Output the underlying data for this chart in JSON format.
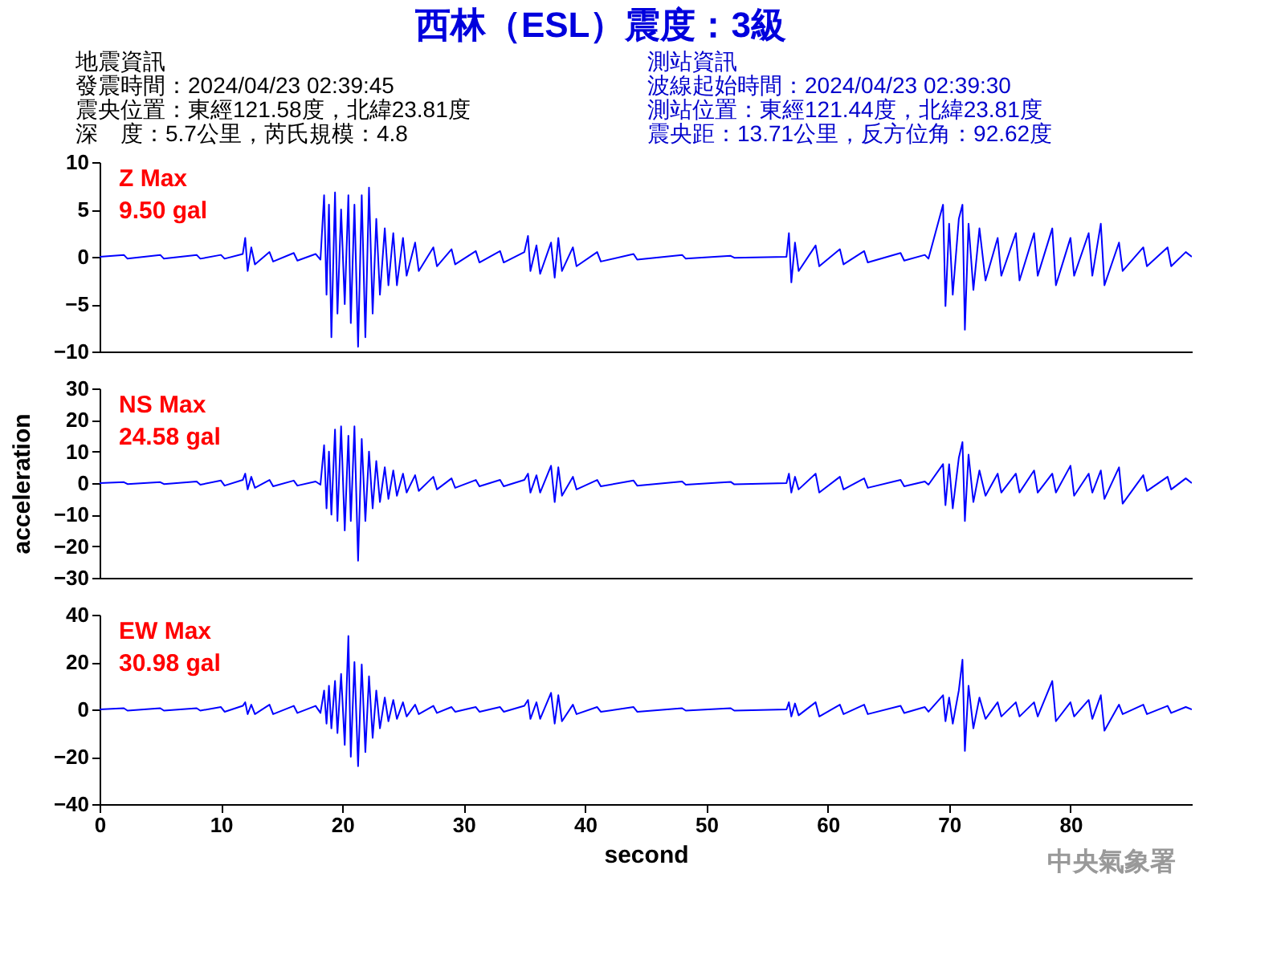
{
  "chart_data": [
    {
      "type": "line",
      "title": "西林（ESL）震度：3級",
      "tick_labels": "y",
      "xlim": [
        0,
        90
      ],
      "ylim": [
        -10,
        10
      ],
      "yticks": [
        -10,
        -5,
        0,
        5,
        10
      ],
      "annotations": [
        "Z Max",
        "9.50 gal",
        "地震資訊",
        "發震時間：2024/04/23 02:39:45",
        "震央位置：東經121.58度，北緯23.81度",
        "深　度：5.7公里，芮氏規模：4.8",
        "測站資訊",
        "波線起始時間：2024/04/23 02:39:30",
        "測站位置：東經121.44度，北緯23.81度",
        "震央距：13.71公里，反方位角：92.62度"
      ],
      "x": [
        0,
        2,
        2.3,
        5,
        5.3,
        8,
        8.3,
        10,
        10.3,
        11.8,
        12,
        12.2,
        12.5,
        12.8,
        14,
        14.3,
        16,
        16.3,
        17.8,
        18.2,
        18.5,
        18.7,
        18.9,
        19.1,
        19.4,
        19.6,
        19.9,
        20.2,
        20.5,
        20.7,
        21,
        21.3,
        21.6,
        21.9,
        22.2,
        22.5,
        22.8,
        23.1,
        23.5,
        23.8,
        24.2,
        24.5,
        25,
        25.3,
        26,
        26.3,
        27.5,
        27.8,
        29,
        29.3,
        31,
        31.3,
        33,
        33.3,
        35,
        35.3,
        35.5,
        36,
        36.3,
        37.2,
        37.5,
        37.8,
        38.1,
        39,
        39.3,
        41,
        41.3,
        44,
        44.3,
        48,
        48.3,
        52,
        52.3,
        56.6,
        56.8,
        57,
        57.3,
        57.6,
        59,
        59.3,
        61,
        61.3,
        63,
        63.3,
        66,
        66.3,
        68,
        68.3,
        69.5,
        69.7,
        70,
        70.3,
        70.8,
        71.1,
        71.3,
        71.6,
        72,
        72.5,
        73,
        74,
        74.3,
        75.5,
        75.8,
        77,
        77.3,
        78.5,
        78.8,
        80,
        80.3,
        81.5,
        81.8,
        82.5,
        82.8,
        84,
        84.3,
        86,
        86.3,
        88,
        88.3,
        89.5,
        90
      ],
      "series": [
        {
          "color": "#0000ff",
          "values": [
            0,
            0.2,
            -0.2,
            0.2,
            -0.2,
            0.2,
            -0.2,
            0.2,
            -0.2,
            0.3,
            2.0,
            -1.5,
            1,
            -0.8,
            0.5,
            -0.5,
            0.4,
            -0.4,
            0.3,
            -0.3,
            6.5,
            -4,
            5.5,
            -8.5,
            6.8,
            -6,
            5,
            -5,
            6.5,
            -7,
            5.5,
            -9.5,
            6.5,
            -8.5,
            7.3,
            -6,
            4,
            -4,
            3,
            -3,
            2.5,
            -3,
            2,
            -2,
            1.5,
            -1.5,
            1,
            -1,
            0.8,
            -0.8,
            0.6,
            -0.6,
            0.6,
            -0.6,
            0.5,
            2.2,
            -1.5,
            1.2,
            -1.8,
            1.5,
            -2.2,
            2,
            -1.5,
            1,
            -1,
            0.5,
            -0.5,
            0.3,
            -0.3,
            0.2,
            -0.2,
            0.1,
            -0.1,
            0,
            2.5,
            -2.7,
            1.5,
            -1.5,
            1.2,
            -1,
            0.8,
            -0.8,
            0.6,
            -0.6,
            0.4,
            -0.4,
            0.2,
            -0.2,
            5.5,
            -5.2,
            3.5,
            -4,
            4,
            5.5,
            -7.7,
            3.5,
            -3.5,
            3,
            -2.5,
            2,
            -2,
            2.5,
            -2.5,
            2.5,
            -2,
            3,
            -3,
            2,
            -2,
            2.5,
            -2,
            3.5,
            -3,
            1.5,
            -1.5,
            1,
            -1,
            1,
            -1,
            0.5,
            0
          ]
        }
      ]
    },
    {
      "type": "line",
      "tick_labels": "y",
      "xlim": [
        0,
        90
      ],
      "ylim": [
        -30,
        30
      ],
      "yticks": [
        -30,
        -20,
        -10,
        0,
        10,
        20,
        30
      ],
      "ylabel": "acceleration",
      "annotations": [
        "NS Max",
        "24.58 gal"
      ],
      "x": [
        0,
        2,
        2.3,
        5,
        5.3,
        8,
        8.3,
        10,
        10.3,
        11.8,
        12,
        12.2,
        12.5,
        12.8,
        14,
        14.3,
        16,
        16.3,
        17.8,
        18.2,
        18.5,
        18.7,
        18.9,
        19.1,
        19.4,
        19.6,
        19.9,
        20.2,
        20.5,
        20.7,
        21,
        21.3,
        21.6,
        21.9,
        22.2,
        22.5,
        22.8,
        23.1,
        23.5,
        23.8,
        24.2,
        24.5,
        25,
        25.3,
        26,
        26.3,
        27.5,
        27.8,
        29,
        29.3,
        31,
        31.3,
        33,
        33.3,
        35,
        35.3,
        35.5,
        36,
        36.3,
        37.2,
        37.5,
        37.8,
        38.1,
        39,
        39.3,
        41,
        41.3,
        44,
        44.3,
        48,
        48.3,
        52,
        52.3,
        56.6,
        56.8,
        57,
        57.3,
        57.6,
        59,
        59.3,
        61,
        61.3,
        63,
        63.3,
        66,
        66.3,
        68,
        68.3,
        69.5,
        69.7,
        70,
        70.3,
        70.8,
        71.1,
        71.3,
        71.6,
        72,
        72.5,
        73,
        74,
        74.3,
        75.5,
        75.8,
        77,
        77.3,
        78.5,
        78.8,
        80,
        80.3,
        81.5,
        81.8,
        82.5,
        82.8,
        84,
        84.3,
        86,
        86.3,
        88,
        88.3,
        89.5,
        90
      ],
      "series": [
        {
          "color": "#0000ff",
          "values": [
            0,
            0.3,
            -0.3,
            0.3,
            -0.3,
            0.5,
            -0.5,
            0.8,
            -0.8,
            1,
            3,
            -2,
            2,
            -1.5,
            1,
            -1,
            0.8,
            -0.8,
            0.5,
            -0.5,
            12,
            -8,
            10,
            -10,
            17,
            -12,
            18,
            -15,
            15,
            -12,
            18,
            -24.6,
            14,
            -12,
            10,
            -8,
            7,
            -6,
            5,
            -5,
            4,
            -4,
            3,
            -3,
            2.5,
            -2.5,
            2,
            -2,
            1.5,
            -1.5,
            1,
            -1,
            1,
            -1,
            1,
            3,
            -3,
            2.5,
            -3,
            5.5,
            -6,
            5,
            -4,
            2,
            -2,
            1,
            -1,
            0.8,
            -0.8,
            0.5,
            -0.5,
            0.4,
            -0.4,
            0,
            3,
            -3,
            2,
            -2,
            3,
            -3,
            2,
            -2,
            1.5,
            -1.5,
            1,
            -1,
            0.5,
            -0.5,
            6,
            -7,
            6,
            -8,
            8,
            13,
            -12,
            9,
            -6,
            4,
            -4,
            3,
            -3,
            3,
            -3,
            4,
            -3,
            3,
            -3,
            5.5,
            -4,
            3,
            -3,
            4,
            -5,
            5,
            -6.5,
            2.5,
            -2.5,
            2,
            -2,
            1.5,
            0
          ]
        }
      ]
    },
    {
      "type": "line",
      "xlim": [
        0,
        90
      ],
      "xticks": [
        0,
        10,
        20,
        30,
        40,
        50,
        60,
        70,
        80
      ],
      "ylim": [
        -40,
        40
      ],
      "yticks": [
        -40,
        -20,
        0,
        20,
        40
      ],
      "xlabel": "second",
      "annotations": [
        "EW Max",
        "30.98 gal",
        "中央氣象署"
      ],
      "x": [
        0,
        2,
        2.3,
        5,
        5.3,
        8,
        8.3,
        10,
        10.3,
        11.8,
        12,
        12.2,
        12.5,
        12.8,
        14,
        14.3,
        16,
        16.3,
        17.8,
        18.2,
        18.5,
        18.7,
        18.9,
        19.1,
        19.4,
        19.6,
        19.9,
        20.2,
        20.5,
        20.7,
        21,
        21.3,
        21.6,
        21.9,
        22.2,
        22.5,
        22.8,
        23.1,
        23.5,
        23.8,
        24.2,
        24.5,
        25,
        25.3,
        26,
        26.3,
        27.5,
        27.8,
        29,
        29.3,
        31,
        31.3,
        33,
        33.3,
        35,
        35.3,
        35.5,
        36,
        36.3,
        37.2,
        37.5,
        37.8,
        38.1,
        39,
        39.3,
        41,
        41.3,
        44,
        44.3,
        48,
        48.3,
        52,
        52.3,
        56.6,
        56.8,
        57,
        57.3,
        57.6,
        59,
        59.3,
        61,
        61.3,
        63,
        63.3,
        66,
        66.3,
        68,
        68.3,
        69.5,
        69.7,
        70,
        70.3,
        70.8,
        71.1,
        71.3,
        71.6,
        72,
        72.5,
        73,
        74,
        74.3,
        75.5,
        75.8,
        77,
        77.3,
        78.5,
        78.8,
        80,
        80.3,
        81.5,
        81.8,
        82.5,
        82.8,
        84,
        84.3,
        86,
        86.3,
        88,
        88.3,
        89.5,
        90
      ],
      "series": [
        {
          "color": "#0000ff",
          "values": [
            0,
            0.5,
            -0.5,
            0.5,
            -0.5,
            0.5,
            -0.5,
            1,
            -1,
            1.5,
            3,
            -2,
            2,
            -2,
            2,
            -2,
            1.5,
            -1.5,
            1.5,
            -1.5,
            8,
            -6,
            10,
            -8,
            12,
            -10,
            15,
            -15,
            31,
            -20,
            20,
            -24,
            19,
            -18,
            14,
            -12,
            8,
            -8,
            5,
            -5,
            4,
            -4,
            3,
            -3,
            2,
            -2,
            1.5,
            -1.5,
            1,
            -1,
            1,
            -1,
            1,
            -1,
            1.5,
            4,
            -4,
            3,
            -4,
            7,
            -6,
            6,
            -5,
            2,
            -2,
            1,
            -1,
            1,
            -1,
            0.5,
            -0.5,
            0.5,
            -0.5,
            0,
            3,
            -3,
            2.5,
            -2.5,
            3,
            -3,
            2,
            -2,
            2,
            -2,
            1.5,
            -1.5,
            1,
            -1,
            6,
            -5,
            5,
            -6,
            8,
            21,
            -17.5,
            10,
            -8,
            5,
            -4,
            3,
            -3,
            3,
            -3,
            3,
            -3,
            12,
            -5,
            3,
            -3,
            4,
            -4,
            6,
            -9,
            2,
            -2,
            2,
            -2,
            1.5,
            -1.5,
            1,
            0
          ]
        }
      ]
    }
  ]
}
